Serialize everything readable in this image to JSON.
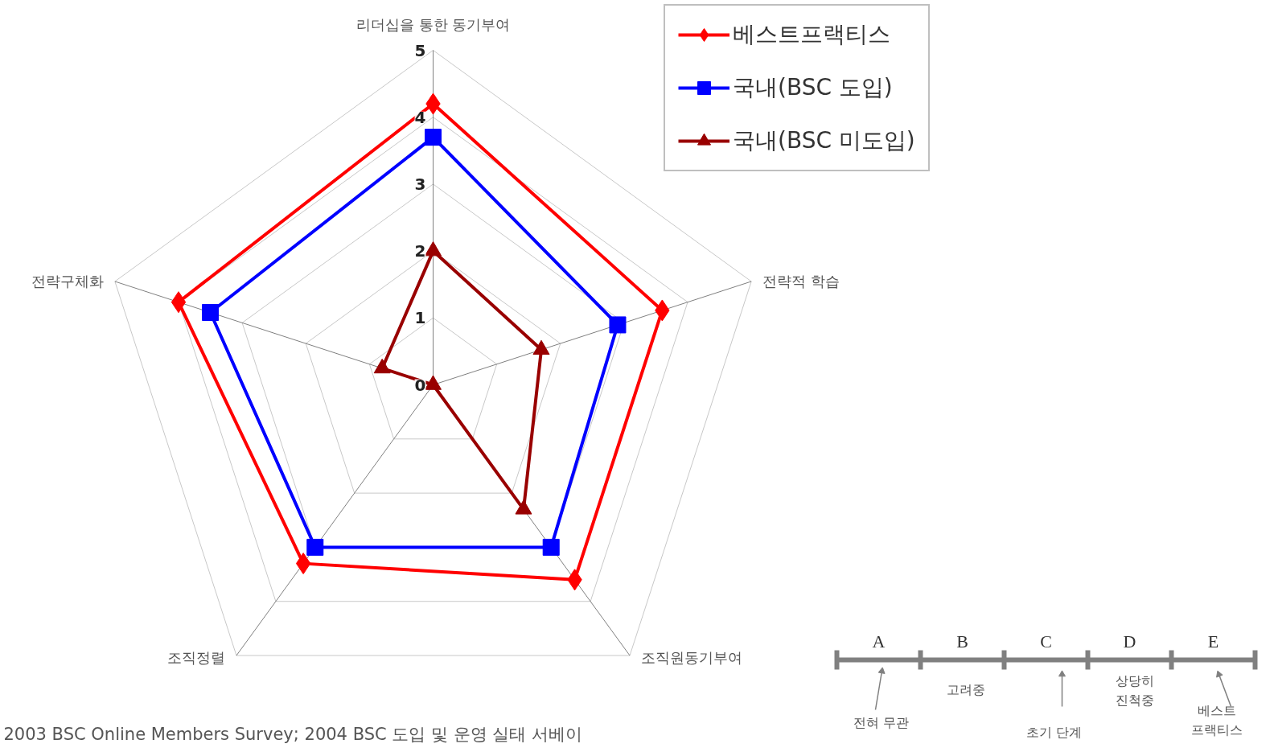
{
  "chart_data": {
    "type": "radar",
    "categories": [
      "리더십을 통한 동기부여",
      "전략적 학습",
      "조직원동기부여",
      "조직정렬",
      "전략구체화"
    ],
    "series": [
      {
        "name": "베스트프랙티스",
        "color": "#ff0000",
        "marker": "diamond",
        "values": [
          4.2,
          3.6,
          3.6,
          3.3,
          4.0
        ]
      },
      {
        "name": "국내(BSC 도입)",
        "color": "#0000ff",
        "marker": "square",
        "values": [
          3.7,
          2.9,
          3.0,
          3.0,
          3.5
        ]
      },
      {
        "name": "국내(BSC 미도입)",
        "color": "#990000",
        "marker": "triangle",
        "values": [
          2.0,
          1.7,
          2.3,
          0,
          0.8
        ]
      }
    ],
    "ylim": [
      0,
      5
    ],
    "yticks": [
      0,
      1,
      2,
      3,
      4,
      5
    ],
    "grid": true,
    "legend": "top right",
    "line_style": "solid",
    "annotations": [
      "2003 BSC Online Members Survey; 2004 BSC 도입 및 운영 실태 서베이",
      "A",
      "B",
      "C",
      "D",
      "E",
      "전혀 무관",
      "고려중",
      "초기 단계",
      "상당히\n진척중",
      "베스트\n프랙티스"
    ]
  }
}
